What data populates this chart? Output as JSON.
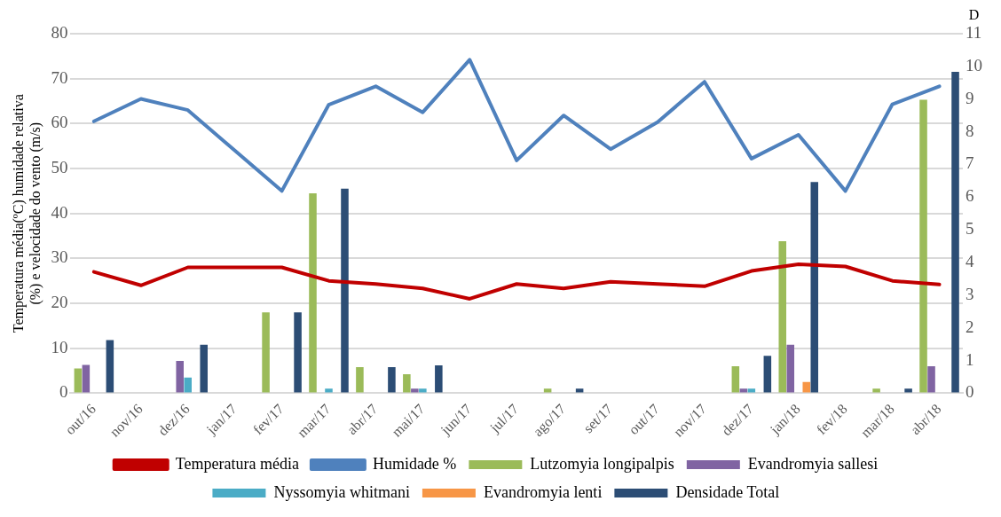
{
  "chart_data": {
    "type": "bar",
    "ylabel": "Temperatura média(ºC) humidade relativa (%) e velocidade do vento (m/s)",
    "y2label": "D",
    "categories": [
      "out/16",
      "nov/16",
      "dez/16",
      "jan/17",
      "fev/17",
      "mar/17",
      "abr/17",
      "mai/17",
      "jun/17",
      "jul/17",
      "ago/17",
      "set/17",
      "out/17",
      "nov/17",
      "dez/17",
      "jan/18",
      "fev/18",
      "mar/18",
      "abr/18"
    ],
    "series": [
      {
        "name": "Lutzomyia longipalpis",
        "color": "#9bbb59",
        "values": [
          5.5,
          0,
          0,
          0,
          18,
          44.5,
          5.8,
          4.2,
          0,
          0,
          1,
          0,
          0,
          0,
          6,
          33.8,
          0,
          1,
          65.3
        ]
      },
      {
        "name": "Evandromyia sallesi",
        "color": "#8064a2",
        "values": [
          6.3,
          0,
          7.2,
          0,
          0,
          0,
          0,
          1,
          0,
          0,
          0,
          0,
          0,
          0,
          1,
          10.8,
          0,
          0,
          6
        ]
      },
      {
        "name": "Nyssomyia whitmani",
        "color": "#4bacc6",
        "values": [
          0,
          0,
          3.5,
          0,
          0,
          1,
          0,
          1,
          0,
          0,
          0,
          0,
          0,
          0,
          1,
          0,
          0,
          0,
          0
        ]
      },
      {
        "name": "Evandromyia lenti",
        "color": "#f79646",
        "values": [
          0,
          0,
          0,
          0,
          0,
          0,
          0,
          0,
          0,
          0,
          0,
          0,
          0,
          0,
          0,
          2.5,
          0,
          0,
          0
        ]
      },
      {
        "name": "Densidade Total",
        "color": "#2c4d75",
        "values": [
          11.8,
          0,
          10.8,
          0,
          18,
          45.5,
          5.8,
          6.2,
          0,
          0,
          1,
          0,
          0,
          0,
          8.3,
          47,
          0,
          1,
          71.5
        ]
      },
      {
        "name": "Temperatura média",
        "type": "line",
        "color": "#c00000",
        "values": [
          27,
          24,
          28,
          28,
          28,
          25,
          24.3,
          23.3,
          21,
          24.3,
          23.3,
          24.8,
          24.3,
          23.8,
          27.2,
          28.7,
          28.2,
          25,
          24.2
        ]
      },
      {
        "name": "Humidade %",
        "type": "line",
        "color": "#4f81bd",
        "values": [
          60.5,
          65.5,
          63,
          54,
          45,
          64.2,
          68.3,
          62.5,
          74.2,
          51.8,
          61.8,
          54.3,
          60.3,
          69.3,
          52.2,
          57.5,
          45,
          64.3,
          68.3
        ]
      }
    ],
    "ylim": [
      0,
      80
    ],
    "yticks": [
      0,
      10,
      20,
      30,
      40,
      50,
      60,
      70,
      80
    ],
    "y2lim": [
      0,
      11
    ],
    "y2ticks": [
      0,
      1,
      2,
      3,
      4,
      5,
      6,
      7,
      8,
      9,
      10,
      11
    ],
    "grid": "y",
    "legend": "bottom",
    "marker": "none",
    "line_style": "solid"
  }
}
